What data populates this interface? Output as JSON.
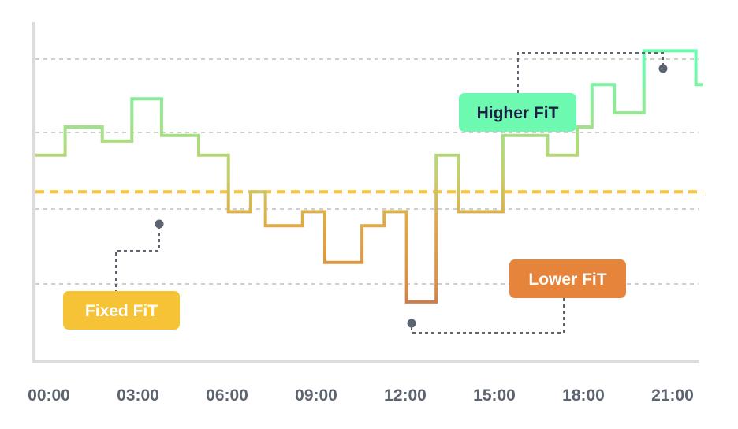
{
  "chart_data": {
    "type": "line",
    "step": true,
    "grid": "horizontal dashed",
    "x_ticks": [
      "00:00",
      "03:00",
      "06:00",
      "09:00",
      "12:00",
      "15:00",
      "18:00",
      "21:00"
    ],
    "series": [
      {
        "x": [
          0,
          1,
          2.25,
          3.25,
          4.25,
          5.5,
          6.5,
          7.25,
          7.75,
          9,
          9.75,
          11,
          11.75,
          12.5,
          13.5,
          14.25,
          15.75,
          17.25,
          18.25,
          18.75,
          19.5,
          20.5,
          22.25
        ],
        "y": [
          7.3,
          8.3,
          7.8,
          9.3,
          8.0,
          7.3,
          5.3,
          6.0,
          4.8,
          5.3,
          3.5,
          4.8,
          5.3,
          2.1,
          7.3,
          5.3,
          8.0,
          7.3,
          8.3,
          9.8,
          8.8,
          11.0,
          9.8
        ],
        "x_end": 22.5
      }
    ],
    "fixed_fit": 6.0,
    "ylim": [
      0,
      12.8
    ],
    "xlim": [
      0,
      22.5
    ],
    "colors": {
      "higher": "#6dfab0",
      "fixed": "#f5c335",
      "lower": "#e5843a",
      "lowest": "#b0625a",
      "axis": "#dcdcdc",
      "grid": "#c9c9c9",
      "connector": "#5b6470"
    },
    "annotations": {
      "higher": {
        "label": "Higher FiT",
        "color": "#6dfab0",
        "text_color": "#1b2142"
      },
      "lower": {
        "label": "Lower FiT",
        "color": "#e5843a",
        "text_color": "#ffffff"
      },
      "fixed": {
        "label": "Fixed FiT",
        "color": "#f5c335",
        "text_color": "#ffffff"
      }
    }
  }
}
